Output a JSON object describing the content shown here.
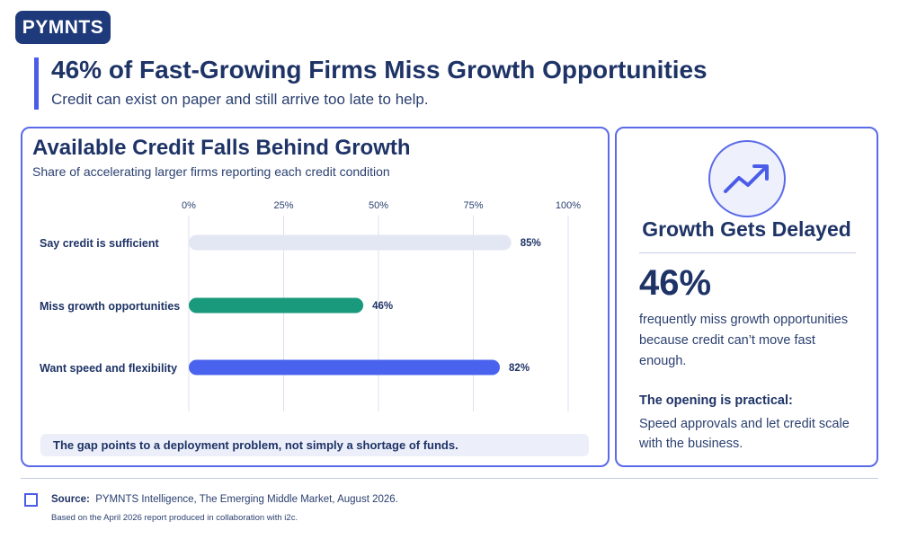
{
  "brand": {
    "logo": "PYMNTS"
  },
  "header": {
    "title": "46% of Fast-Growing Firms Miss Growth Opportunities",
    "subtitle": "Credit can exist on paper and still arrive too late to help."
  },
  "chart_data": {
    "type": "bar",
    "orientation": "horizontal",
    "title": "Available Credit Falls Behind Growth",
    "subtitle": "Share of accelerating larger firms reporting each credit condition",
    "categories": [
      "Say credit is sufficient",
      "Miss growth opportunities",
      "Want speed and flexibility"
    ],
    "values": [
      85,
      46,
      82
    ],
    "value_labels": [
      "85%",
      "46%",
      "82%"
    ],
    "colors": [
      "#e3e6f3",
      "#1a9a7c",
      "#4a63ee"
    ],
    "xlim": [
      0,
      100
    ],
    "ticks": [
      0,
      25,
      50,
      75,
      100
    ],
    "tick_labels": [
      "0%",
      "25%",
      "50%",
      "75%",
      "100%"
    ],
    "grid": true,
    "xlabel": "",
    "ylabel": ""
  },
  "note": "The gap points to a deployment problem, not simply a shortage of funds.",
  "sidebar": {
    "icon": "trend-up-icon",
    "title": "Growth Gets Delayed",
    "stat": "46%",
    "stat_desc": "frequently miss growth opportunities because credit can’t move fast enough.",
    "opening_head": "The opening is practical:",
    "opening_body": "Speed approvals and let credit scale with the business."
  },
  "footer": {
    "source_label": "Source:",
    "source_text": "PYMNTS Intelligence, The Emerging Middle Market, August 2026.",
    "note": "Based on the April 2026 report produced in collaboration with i2c."
  },
  "colors": {
    "accent": "#4a5ce8",
    "brand": "#1f3a7a",
    "text": "#1e3366"
  }
}
